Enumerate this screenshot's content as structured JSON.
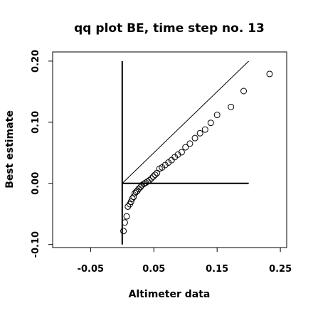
{
  "chart_data": {
    "type": "scatter",
    "title": "qq plot BE, time step no. 13",
    "xlabel": "Altimeter data",
    "ylabel": "Best estimate",
    "xlim": [
      -0.11,
      0.26
    ],
    "ylim": [
      -0.105,
      0.215
    ],
    "x_ticks": [
      -0.05,
      0.05,
      0.15,
      0.25
    ],
    "x_tick_labels": [
      "-0.05",
      "0.05",
      "0.15",
      "0.25"
    ],
    "y_ticks": [
      -0.1,
      0.0,
      0.1,
      0.2
    ],
    "y_tick_labels": [
      "-0.10",
      "0.00",
      "0.10",
      "0.20"
    ],
    "grid": false,
    "reference_lines": [
      {
        "kind": "identity",
        "x": [
          0.0,
          0.2
        ],
        "y": [
          0.0,
          0.2
        ]
      },
      {
        "kind": "vertical",
        "x": [
          0.0,
          0.0
        ],
        "y": [
          -0.1,
          0.2
        ]
      },
      {
        "kind": "horizontal",
        "x": [
          0.0,
          0.2
        ],
        "y": [
          0.0,
          0.0
        ]
      }
    ],
    "points": [
      {
        "x": 0.002,
        "y": -0.078
      },
      {
        "x": 0.004,
        "y": -0.064
      },
      {
        "x": 0.007,
        "y": -0.054
      },
      {
        "x": 0.009,
        "y": -0.038
      },
      {
        "x": 0.012,
        "y": -0.034
      },
      {
        "x": 0.014,
        "y": -0.03
      },
      {
        "x": 0.016,
        "y": -0.025
      },
      {
        "x": 0.018,
        "y": -0.022
      },
      {
        "x": 0.02,
        "y": -0.016
      },
      {
        "x": 0.022,
        "y": -0.014
      },
      {
        "x": 0.024,
        "y": -0.012
      },
      {
        "x": 0.026,
        "y": -0.009
      },
      {
        "x": 0.029,
        "y": -0.006
      },
      {
        "x": 0.031,
        "y": -0.003
      },
      {
        "x": 0.034,
        "y": -0.001
      },
      {
        "x": 0.037,
        "y": 0.001
      },
      {
        "x": 0.04,
        "y": 0.003
      },
      {
        "x": 0.043,
        "y": 0.005
      },
      {
        "x": 0.046,
        "y": 0.008
      },
      {
        "x": 0.049,
        "y": 0.011
      },
      {
        "x": 0.052,
        "y": 0.014
      },
      {
        "x": 0.055,
        "y": 0.017
      },
      {
        "x": 0.059,
        "y": 0.024
      },
      {
        "x": 0.063,
        "y": 0.026
      },
      {
        "x": 0.068,
        "y": 0.03
      },
      {
        "x": 0.073,
        "y": 0.034
      },
      {
        "x": 0.078,
        "y": 0.038
      },
      {
        "x": 0.083,
        "y": 0.043
      },
      {
        "x": 0.088,
        "y": 0.047
      },
      {
        "x": 0.094,
        "y": 0.051
      },
      {
        "x": 0.1,
        "y": 0.059
      },
      {
        "x": 0.107,
        "y": 0.065
      },
      {
        "x": 0.115,
        "y": 0.074
      },
      {
        "x": 0.123,
        "y": 0.082
      },
      {
        "x": 0.131,
        "y": 0.088
      },
      {
        "x": 0.14,
        "y": 0.099
      },
      {
        "x": 0.15,
        "y": 0.112
      },
      {
        "x": 0.172,
        "y": 0.125
      },
      {
        "x": 0.192,
        "y": 0.151
      },
      {
        "x": 0.233,
        "y": 0.179
      }
    ]
  }
}
